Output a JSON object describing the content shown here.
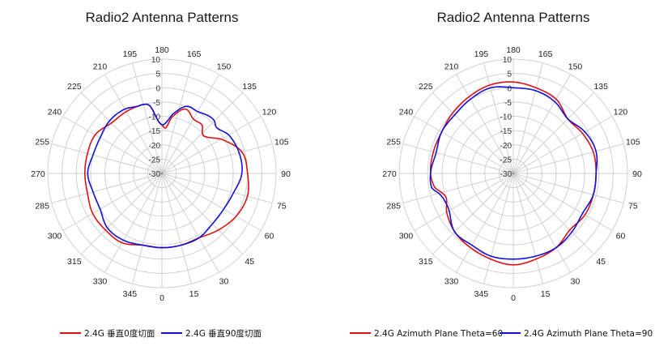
{
  "colors": {
    "series_a": "#e01010",
    "series_b": "#1010e0",
    "grid": "#d0d0d0",
    "center_dot": "#999999"
  },
  "chart_data": [
    {
      "type": "line",
      "projection": "polar",
      "title": "Radio2 Antenna Patterns",
      "theta_zero": "bottom",
      "theta_direction": "counterclockwise",
      "theta_ticks": [
        0,
        15,
        30,
        45,
        60,
        75,
        90,
        105,
        120,
        135,
        150,
        165,
        180,
        195,
        210,
        225,
        240,
        255,
        270,
        285,
        300,
        315,
        330,
        345
      ],
      "r_ticks": [
        10,
        5,
        0,
        -5,
        -10,
        -15,
        -20,
        -25,
        -30
      ],
      "r_range": [
        -30,
        10
      ],
      "grid": true,
      "legend_position": "bottom",
      "theta_deg": [
        0,
        15,
        30,
        45,
        60,
        75,
        90,
        105,
        120,
        130,
        135,
        140,
        150,
        160,
        170,
        175,
        180,
        185,
        190,
        195,
        200,
        210,
        225,
        240,
        255,
        270,
        285,
        300,
        315,
        330,
        345
      ],
      "series": [
        {
          "name": "2.4G 垂直0度切面",
          "values": [
            -4,
            -4,
            -4,
            -2,
            0,
            1,
            0,
            -1,
            -6,
            -10,
            -10,
            -8,
            -8,
            -6,
            -10,
            -14,
            -13,
            -11,
            -6,
            -5,
            -5,
            -5,
            -5,
            -3,
            -3,
            -3,
            -3,
            -2,
            -2,
            -2,
            -4
          ]
        },
        {
          "name": "2.4G 垂直90度切面",
          "values": [
            -4,
            -4,
            -4,
            -5,
            -5,
            -4,
            -2,
            -2,
            -3,
            -5,
            -4,
            -4,
            -5,
            -5,
            -9,
            -12,
            -13,
            -11,
            -6,
            -5,
            -5,
            -4,
            -4,
            -5,
            -5,
            -4,
            -5,
            -5,
            -3,
            -3,
            -4
          ]
        }
      ]
    },
    {
      "type": "line",
      "projection": "polar",
      "title": "Radio2 Antenna Patterns",
      "theta_zero": "bottom",
      "theta_direction": "counterclockwise",
      "theta_ticks": [
        0,
        15,
        30,
        45,
        60,
        75,
        90,
        105,
        120,
        135,
        150,
        165,
        180,
        195,
        210,
        225,
        240,
        255,
        270,
        285,
        300,
        315,
        330,
        345
      ],
      "r_ticks": [
        10,
        5,
        0,
        -5,
        -10,
        -15,
        -20,
        -25,
        -30
      ],
      "r_range": [
        -30,
        10
      ],
      "grid": true,
      "legend_position": "bottom",
      "theta_deg": [
        0,
        15,
        30,
        45,
        60,
        75,
        90,
        105,
        120,
        135,
        150,
        165,
        180,
        195,
        210,
        225,
        240,
        255,
        270,
        280,
        285,
        290,
        300,
        315,
        330,
        345
      ],
      "series": [
        {
          "name": "2.4G Azimuth Plane Theta=60",
          "values": [
            2,
            1,
            0,
            -2,
            -1,
            -1,
            -1,
            -1,
            -2,
            -3,
            0,
            1,
            2,
            2,
            1,
            0,
            -1,
            -1,
            -1,
            -2,
            -4,
            -5,
            -3,
            -1,
            0,
            1
          ]
        },
        {
          "name": "2.4G Azimuth Plane Theta=90",
          "values": [
            0,
            0,
            0,
            -1,
            -2,
            -1,
            -1,
            0,
            -1,
            -3,
            -1,
            0,
            0,
            1,
            0,
            -1,
            -1,
            -2,
            -1,
            -1,
            -3,
            -4,
            -4,
            -1,
            -1,
            0
          ]
        }
      ]
    }
  ]
}
